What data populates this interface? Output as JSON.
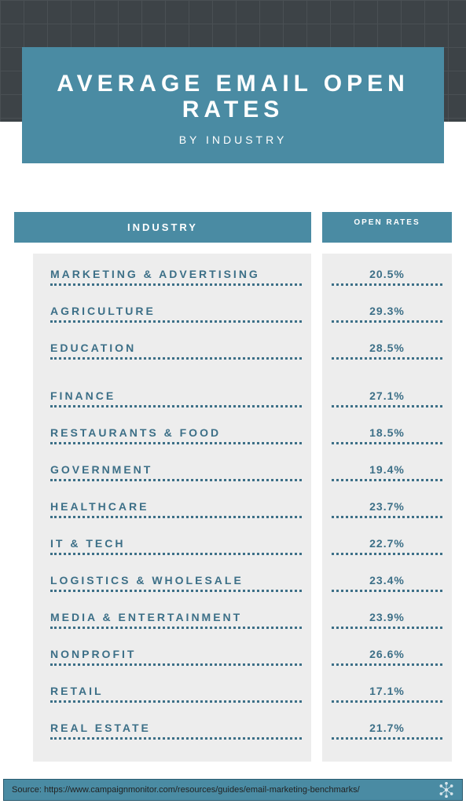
{
  "title": {
    "main": "AVERAGE EMAIL OPEN RATES",
    "sub": "BY INDUSTRY"
  },
  "headers": {
    "industry": "INDUSTRY",
    "rates": "OPEN RATES"
  },
  "colors": {
    "header_bg": "#4a8ba3",
    "dark_bg": "#3d4347",
    "cell_bg": "#ededed",
    "text": "#3c6f87"
  },
  "rows": [
    {
      "industry": "MARKETING & ADVERTISING",
      "rate": "20.5%"
    },
    {
      "industry": "AGRICULTURE",
      "rate": "29.3%"
    },
    {
      "industry": "EDUCATION",
      "rate": "28.5%"
    },
    {
      "industry": "FINANCE",
      "rate": "27.1%"
    },
    {
      "industry": "RESTAURANTS & FOOD",
      "rate": "18.5%"
    },
    {
      "industry": "GOVERNMENT",
      "rate": "19.4%"
    },
    {
      "industry": "HEALTHCARE",
      "rate": "23.7%"
    },
    {
      "industry": "IT & TECH",
      "rate": "22.7%"
    },
    {
      "industry": "LOGISTICS & WHOLESALE",
      "rate": "23.4%"
    },
    {
      "industry": "MEDIA & ENTERTAINMENT",
      "rate": "23.9%"
    },
    {
      "industry": "NONPROFIT",
      "rate": "26.6%"
    },
    {
      "industry": "RETAIL",
      "rate": "17.1%"
    },
    {
      "industry": "REAL ESTATE",
      "rate": "21.7%"
    }
  ],
  "gap_after_index": 2,
  "source": "Source: https://www.campaignmonitor.com/resources/guides/email-marketing-benchmarks/"
}
